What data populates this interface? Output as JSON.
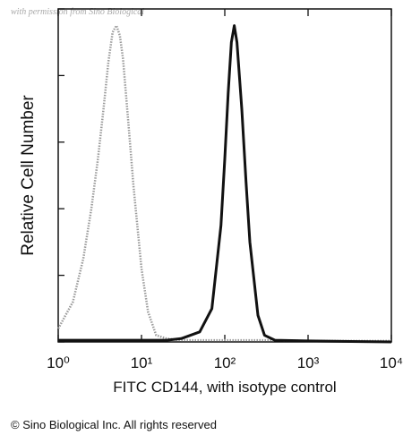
{
  "chart_data": {
    "type": "line",
    "watermark": "with permission from Sino Biological",
    "x_label": "FITC CD144, with isotype control",
    "y_label": "Relative Cell Number",
    "footer": "© Sino Biological Inc. All rights reserved",
    "xscale": "log",
    "xlim": [
      1,
      10000
    ],
    "xticks": [
      {
        "value": 1,
        "label": "10⁰"
      },
      {
        "value": 10,
        "label": "10¹"
      },
      {
        "value": 100,
        "label": "10²"
      },
      {
        "value": 1000,
        "label": "10³"
      },
      {
        "value": 10000,
        "label": "10⁴"
      }
    ],
    "ylim": [
      0,
      100
    ],
    "yticks": [
      0,
      20,
      40,
      60,
      80,
      100
    ],
    "x": [
      1,
      1.5,
      2,
      2.5,
      3,
      3.5,
      4,
      4.5,
      5,
      5.5,
      6,
      7,
      8,
      10,
      12,
      15,
      20,
      30,
      50,
      70,
      90,
      100,
      110,
      120,
      130,
      140,
      160,
      180,
      200,
      250,
      300,
      400,
      1000,
      10000
    ],
    "series": [
      {
        "color": "#9a9a9a",
        "line_style": "dotted",
        "values": [
          4,
          12,
          25,
          40,
          55,
          70,
          84,
          93,
          95,
          92,
          85,
          65,
          47,
          22,
          9,
          2,
          1,
          0.5,
          0.5,
          0.5,
          0.5,
          0.5,
          0.5,
          0.5,
          0.5,
          0.5,
          0.5,
          0.5,
          0.5,
          0.5,
          0.5,
          0.5,
          0.3,
          0.3
        ]
      },
      {
        "color": "#111111",
        "line_style": "solid",
        "values": [
          0.5,
          0.5,
          0.5,
          0.5,
          0.5,
          0.5,
          0.5,
          0.5,
          0.5,
          0.5,
          0.5,
          0.5,
          0.5,
          0.5,
          0.5,
          0.5,
          0.5,
          1,
          3,
          10,
          35,
          55,
          75,
          90,
          95,
          90,
          70,
          48,
          30,
          8,
          2,
          0.5,
          0.3,
          0
        ]
      }
    ]
  }
}
